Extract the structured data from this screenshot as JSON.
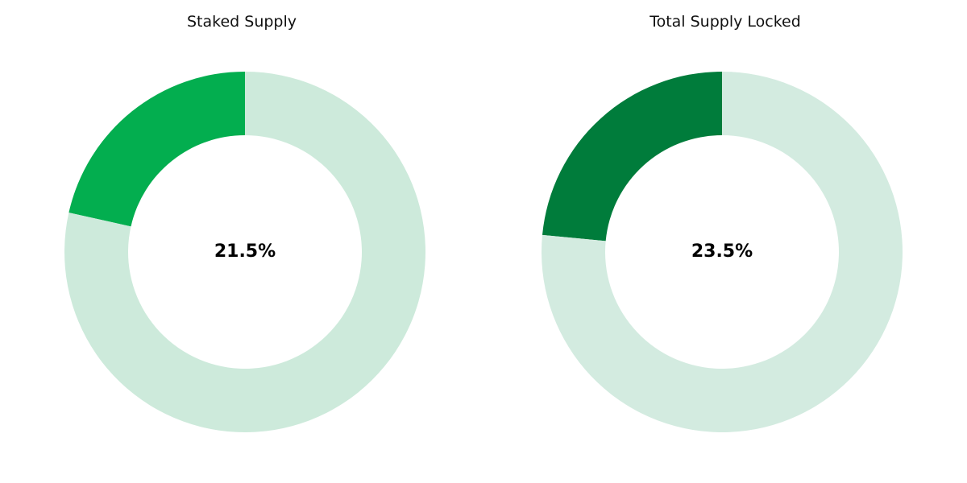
{
  "chart_data": [
    {
      "type": "pie",
      "title": "Staked Supply",
      "center_label": "21.5%",
      "slices": [
        {
          "value": 21.5,
          "color": "#03ae4f"
        },
        {
          "value": 78.5,
          "color": "#cdeadb"
        }
      ]
    },
    {
      "type": "pie",
      "title": "Total Supply Locked",
      "center_label": "23.5%",
      "slices": [
        {
          "value": 23.5,
          "color": "#007c3b"
        },
        {
          "value": 76.5,
          "color": "#d3ebe0"
        }
      ]
    }
  ]
}
